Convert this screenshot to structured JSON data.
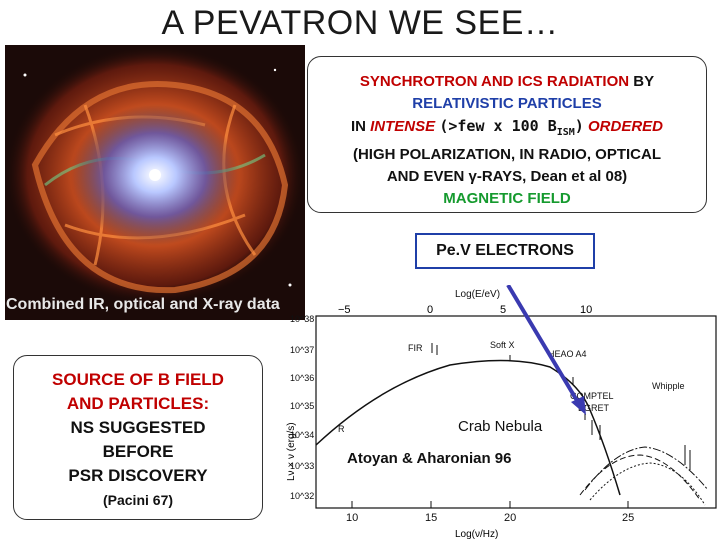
{
  "slide": {
    "title": "A PEVATRON WE SEE…",
    "image_caption": "Combined IR, optical and X-ray data"
  },
  "box_top": {
    "line1_red": "SYNCHROTRON AND ICS RADIATION",
    "line1_black": "BY",
    "line2_blue": "RELATIVISTIC PARTICLES",
    "line3_in": "IN",
    "line3_intense": "INTENSE",
    "line3_paren": "(>few x 100 B",
    "line3_sub": "ISM",
    "line3_close": ")",
    "line3_ordered": "ORDERED",
    "line4": "(HIGH POLARIZATION, IN RADIO, OPTICAL",
    "line5": "AND EVEN γ-RAYS, Dean et al 08)",
    "line6_green": "MAGNETIC FIELD"
  },
  "pev_label": "Pe.V ELECTRONS",
  "box_left": {
    "line1": "SOURCE OF B FIELD",
    "line2": "AND PARTICLES:",
    "line3": "NS SUGGESTED",
    "line4": "BEFORE",
    "line5": "PSR DISCOVERY",
    "line6": "(Pacini 67)"
  },
  "plot": {
    "top_axis_label": "Log(E/eV)",
    "top_ticks": [
      "−5",
      "0",
      "5",
      "10"
    ],
    "y_label": "Lν × ν (erg/s)",
    "y_ticks": [
      "10^38",
      "10^37",
      "10^36",
      "10^35",
      "10^34",
      "10^33",
      "10^32"
    ],
    "bottom_ticks": [
      "10",
      "15",
      "20",
      "25"
    ],
    "bottom_axis_label": "Log(ν/Hz)",
    "labels": {
      "fir": "FIR",
      "soft_x": "Soft X",
      "heao": "HEAO A4",
      "comptel": "COMPTEL",
      "egret": "EGRET",
      "whipple": "Whipple",
      "r": "R",
      "crab": "Crab Nebula"
    },
    "attribution": "Atoyan & Aharonian 96"
  },
  "colors": {
    "red": "#c00000",
    "blue": "#1f3fa8",
    "green": "#159a2e",
    "arrow": "#3a3ab0"
  }
}
